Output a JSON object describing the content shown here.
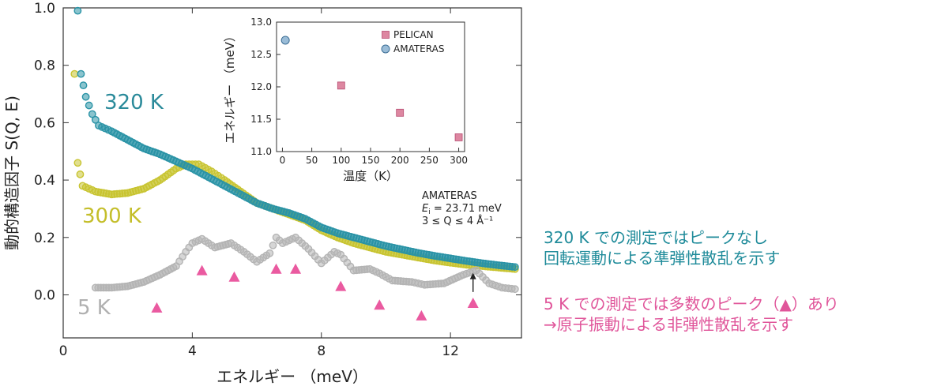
{
  "chart_data": {
    "type": "scatter",
    "xlabel": "エネルギー （meV）",
    "ylabel": "動的構造因子 S(Q, E)",
    "xlim": [
      0,
      14.2
    ],
    "ylim": [
      -0.15,
      1.0
    ],
    "xticks": [
      "0",
      "4",
      "8",
      "12"
    ],
    "yticks": [
      "0.0",
      "0.2",
      "0.4",
      "0.6",
      "0.8",
      "1.0"
    ],
    "series": [
      {
        "name": "320 K",
        "color": "#2a93a6",
        "points": [
          [
            0.45,
            0.99
          ],
          [
            0.55,
            0.77
          ],
          [
            0.7,
            0.69
          ],
          [
            0.9,
            0.63
          ],
          [
            1.1,
            0.59
          ],
          [
            1.5,
            0.57
          ],
          [
            2.0,
            0.54
          ],
          [
            2.5,
            0.51
          ],
          [
            3.0,
            0.49
          ],
          [
            3.5,
            0.465
          ],
          [
            4.0,
            0.44
          ],
          [
            4.5,
            0.41
          ],
          [
            5.0,
            0.38
          ],
          [
            5.5,
            0.35
          ],
          [
            6.0,
            0.32
          ],
          [
            6.5,
            0.3
          ],
          [
            7.0,
            0.285
          ],
          [
            7.5,
            0.265
          ],
          [
            8.0,
            0.235
          ],
          [
            8.5,
            0.215
          ],
          [
            9.0,
            0.2
          ],
          [
            9.5,
            0.185
          ],
          [
            10.0,
            0.17
          ],
          [
            10.5,
            0.158
          ],
          [
            11.0,
            0.146
          ],
          [
            11.5,
            0.136
          ],
          [
            12.0,
            0.127
          ],
          [
            12.5,
            0.118
          ],
          [
            13.0,
            0.11
          ],
          [
            13.5,
            0.103
          ],
          [
            14.0,
            0.097
          ]
        ]
      },
      {
        "name": "300 K",
        "color": "#c8c431",
        "points": [
          [
            0.35,
            0.77
          ],
          [
            0.45,
            0.46
          ],
          [
            0.6,
            0.38
          ],
          [
            1.0,
            0.36
          ],
          [
            1.5,
            0.35
          ],
          [
            2.0,
            0.355
          ],
          [
            2.5,
            0.37
          ],
          [
            3.0,
            0.4
          ],
          [
            3.5,
            0.44
          ],
          [
            3.8,
            0.455
          ],
          [
            4.2,
            0.455
          ],
          [
            4.6,
            0.43
          ],
          [
            5.0,
            0.4
          ],
          [
            5.5,
            0.36
          ],
          [
            6.0,
            0.32
          ],
          [
            6.5,
            0.3
          ],
          [
            7.0,
            0.28
          ],
          [
            7.5,
            0.26
          ],
          [
            8.0,
            0.225
          ],
          [
            8.5,
            0.2
          ],
          [
            9.0,
            0.18
          ],
          [
            9.5,
            0.165
          ],
          [
            10.0,
            0.15
          ],
          [
            10.5,
            0.14
          ],
          [
            11.0,
            0.13
          ],
          [
            11.5,
            0.12
          ],
          [
            12.0,
            0.112
          ],
          [
            12.5,
            0.105
          ],
          [
            13.0,
            0.1
          ],
          [
            13.5,
            0.095
          ],
          [
            14.0,
            0.09
          ]
        ]
      },
      {
        "name": "5 K",
        "color": "#b4b4b4",
        "points": [
          [
            1.0,
            0.025
          ],
          [
            1.5,
            0.025
          ],
          [
            2.0,
            0.03
          ],
          [
            2.5,
            0.045
          ],
          [
            3.0,
            0.07
          ],
          [
            3.5,
            0.1
          ],
          [
            3.8,
            0.15
          ],
          [
            4.0,
            0.18
          ],
          [
            4.3,
            0.195
          ],
          [
            4.7,
            0.165
          ],
          [
            5.2,
            0.18
          ],
          [
            5.6,
            0.15
          ],
          [
            6.0,
            0.115
          ],
          [
            6.4,
            0.145
          ],
          [
            6.6,
            0.2
          ],
          [
            6.8,
            0.18
          ],
          [
            7.2,
            0.2
          ],
          [
            7.6,
            0.16
          ],
          [
            8.0,
            0.11
          ],
          [
            8.4,
            0.15
          ],
          [
            8.6,
            0.14
          ],
          [
            9.0,
            0.085
          ],
          [
            9.5,
            0.09
          ],
          [
            9.8,
            0.075
          ],
          [
            10.2,
            0.05
          ],
          [
            10.8,
            0.045
          ],
          [
            11.2,
            0.035
          ],
          [
            11.8,
            0.04
          ],
          [
            12.4,
            0.07
          ],
          [
            12.8,
            0.085
          ],
          [
            13.2,
            0.04
          ],
          [
            13.6,
            0.025
          ],
          [
            14.0,
            0.02
          ]
        ]
      }
    ],
    "series_labels": [
      "320 K",
      "300 K",
      "5 K"
    ],
    "peaks": [
      2.9,
      4.3,
      5.3,
      6.6,
      7.2,
      8.6,
      9.8,
      11.1,
      12.7
    ],
    "inset": {
      "type": "scatter",
      "xlabel": "温度（K）",
      "ylabel": "エネルギー （meV）",
      "xlim": [
        -10,
        310
      ],
      "ylim": [
        11.0,
        13.0
      ],
      "xticks": [
        "0",
        "50",
        "100",
        "150",
        "200",
        "250",
        "300"
      ],
      "yticks": [
        "11.0",
        "11.5",
        "12.0",
        "12.5",
        "13.0"
      ],
      "series": [
        {
          "name": "PELICAN",
          "color": "#d4698a",
          "points": [
            [
              100,
              12.02
            ],
            [
              200,
              11.6
            ],
            [
              300,
              11.22
            ]
          ]
        },
        {
          "name": "AMATERAS",
          "color": "#6fa0c6",
          "points": [
            [
              5,
              12.72
            ]
          ]
        }
      ]
    },
    "annotation": {
      "instrument": "AMATERAS",
      "ei_symbol": "E",
      "ei_sub": "i",
      "ei_value": " = 23.71 meV",
      "q_range": "3 ≤ Q ≤ 4  Å⁻¹"
    }
  },
  "notes": {
    "teal_line1": "320 K での測定ではピークなし",
    "teal_line2": "回転運動による準弾性散乱を示す",
    "pink_line1": "5 K での測定では多数のピーク（▲）あり",
    "pink_line2": "→原子振動による非弾性散乱を示す"
  }
}
